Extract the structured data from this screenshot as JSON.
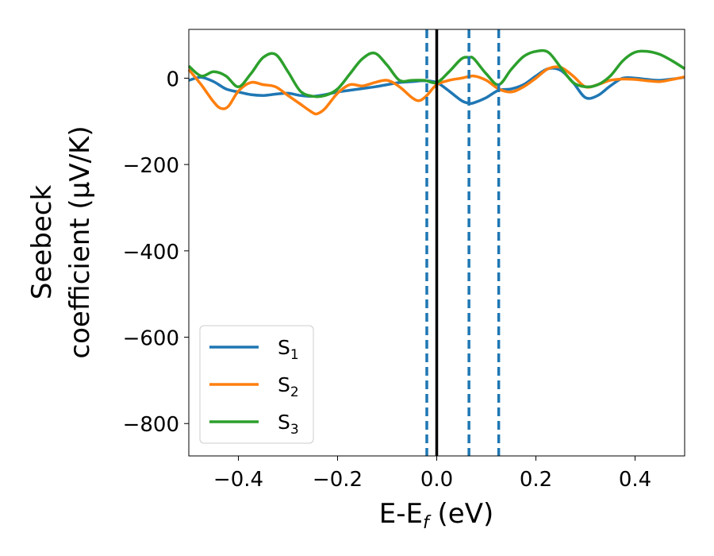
{
  "chart_data": {
    "type": "line",
    "xlabel": {
      "base": "E-E",
      "sub": "f",
      "suffix": " (eV)"
    },
    "ylabel": {
      "line1": "Seebeck",
      "line2": "coefficient  (μV/K)"
    },
    "xlim": [
      -0.5,
      0.5
    ],
    "ylim": [
      -875,
      113
    ],
    "xticks": [
      -0.4,
      -0.2,
      0.0,
      0.2,
      0.4
    ],
    "xtick_labels": [
      "−0.4",
      "−0.2",
      "0.0",
      "0.2",
      "0.4"
    ],
    "yticks": [
      0,
      -200,
      -400,
      -600,
      -800
    ],
    "ytick_labels": [
      "0",
      "−200",
      "−400",
      "−600",
      "−800"
    ],
    "vlines": [
      {
        "x": 0.0,
        "style": "solid",
        "color": "#000000"
      },
      {
        "x": -0.02,
        "style": "dashed",
        "color": "#1f77b4"
      },
      {
        "x": 0.065,
        "style": "dashed",
        "color": "#1f77b4"
      },
      {
        "x": 0.125,
        "style": "dashed",
        "color": "#1f77b4"
      }
    ],
    "legend_position": "lower-left",
    "series": [
      {
        "name": "S",
        "sub": "1",
        "color": "#1f77b4",
        "x": [
          -0.5,
          -0.475,
          -0.45,
          -0.425,
          -0.4,
          -0.375,
          -0.35,
          -0.325,
          -0.3,
          -0.275,
          -0.25,
          -0.225,
          -0.2,
          -0.175,
          -0.15,
          -0.125,
          -0.1,
          -0.075,
          -0.05,
          -0.025,
          0.0,
          0.025,
          0.05,
          0.065,
          0.075,
          0.1,
          0.125,
          0.15,
          0.175,
          0.2,
          0.225,
          0.25,
          0.275,
          0.3,
          0.325,
          0.35,
          0.375,
          0.4,
          0.425,
          0.45,
          0.475,
          0.5
        ],
        "y": [
          -5,
          2,
          -8,
          -25,
          -32,
          -38,
          -40,
          -37,
          -35,
          -40,
          -42,
          -38,
          -32,
          -28,
          -24,
          -20,
          -15,
          -10,
          -8,
          -6,
          -10,
          -30,
          -52,
          -58,
          -57,
          -45,
          -28,
          -25,
          -15,
          5,
          22,
          18,
          -10,
          -45,
          -40,
          -18,
          0,
          0,
          -3,
          -5,
          -2,
          2
        ]
      },
      {
        "name": "S",
        "sub": "2",
        "color": "#ff7f0e",
        "x": [
          -0.5,
          -0.475,
          -0.45,
          -0.435,
          -0.42,
          -0.4,
          -0.375,
          -0.35,
          -0.325,
          -0.3,
          -0.275,
          -0.25,
          -0.24,
          -0.225,
          -0.2,
          -0.175,
          -0.15,
          -0.125,
          -0.1,
          -0.075,
          -0.05,
          -0.035,
          -0.02,
          0.0,
          0.025,
          0.05,
          0.075,
          0.1,
          0.125,
          0.15,
          0.175,
          0.2,
          0.225,
          0.25,
          0.275,
          0.3,
          0.325,
          0.35,
          0.375,
          0.4,
          0.425,
          0.45,
          0.475,
          0.5
        ],
        "y": [
          20,
          -15,
          -55,
          -70,
          -65,
          -30,
          -10,
          -15,
          -20,
          -40,
          -60,
          -80,
          -82,
          -70,
          -35,
          -15,
          -18,
          -10,
          -5,
          -20,
          -45,
          -52,
          -40,
          -15,
          -5,
          0,
          5,
          -5,
          -25,
          -32,
          -20,
          0,
          22,
          25,
          5,
          -20,
          -15,
          -5,
          -2,
          -3,
          -6,
          -8,
          -3,
          3
        ]
      },
      {
        "name": "S",
        "sub": "3",
        "color": "#2ca02c",
        "x": [
          -0.5,
          -0.475,
          -0.45,
          -0.425,
          -0.4,
          -0.375,
          -0.35,
          -0.325,
          -0.3,
          -0.275,
          -0.25,
          -0.225,
          -0.2,
          -0.175,
          -0.15,
          -0.125,
          -0.1,
          -0.075,
          -0.05,
          -0.025,
          0.0,
          0.025,
          0.05,
          0.065,
          0.075,
          0.1,
          0.125,
          0.15,
          0.175,
          0.2,
          0.225,
          0.25,
          0.275,
          0.3,
          0.325,
          0.35,
          0.375,
          0.4,
          0.425,
          0.45,
          0.475,
          0.5
        ],
        "y": [
          28,
          5,
          15,
          5,
          -20,
          10,
          48,
          55,
          15,
          -30,
          -42,
          -40,
          -25,
          10,
          45,
          58,
          30,
          -5,
          -5,
          -5,
          -10,
          15,
          45,
          48,
          45,
          10,
          -15,
          20,
          50,
          62,
          60,
          25,
          -10,
          -20,
          -15,
          5,
          40,
          60,
          62,
          55,
          40,
          22
        ]
      }
    ]
  }
}
